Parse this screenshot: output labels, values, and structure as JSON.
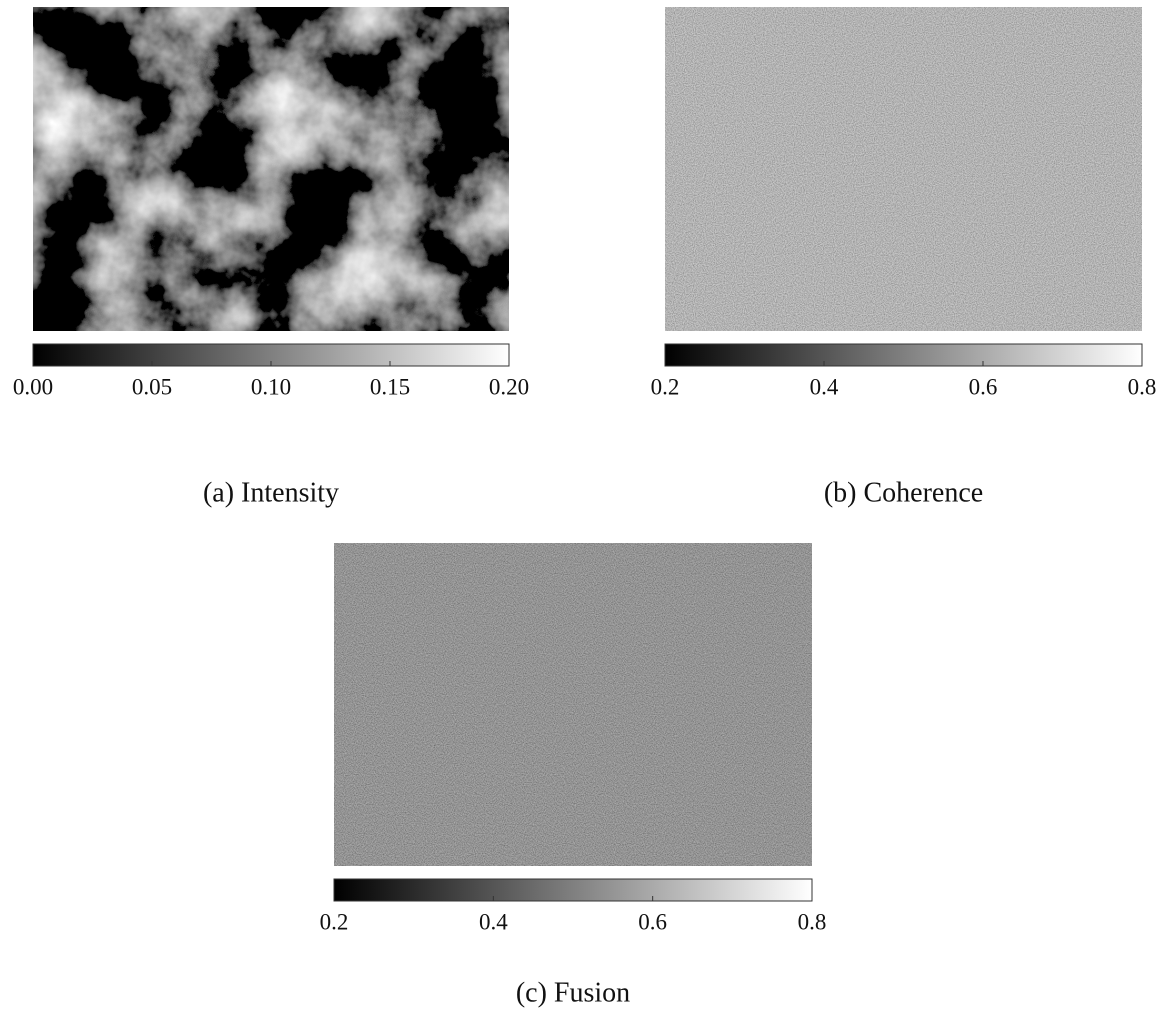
{
  "panels": [
    {
      "caption": "(a) Intensity",
      "colorbar": {
        "lim": [
          0,
          0.2
        ],
        "ticks": [
          {
            "value": 0,
            "label": "0.00"
          },
          {
            "value": 0.05,
            "label": "0.05"
          },
          {
            "value": 0.1,
            "label": "0.10"
          },
          {
            "value": 0.15,
            "label": "0.15"
          },
          {
            "value": 0.2,
            "label": "0.20"
          }
        ]
      }
    },
    {
      "caption": "(b) Coherence",
      "colorbar": {
        "lim": [
          0.2,
          0.8
        ],
        "ticks": [
          0.2,
          0.4,
          0.6,
          0.8
        ]
      }
    },
    {
      "caption": "(c) Fusion",
      "colorbar": {
        "lim": [
          0.2,
          0.8
        ],
        "ticks": [
          0.2,
          0.4,
          0.6,
          0.8
        ]
      }
    }
  ]
}
